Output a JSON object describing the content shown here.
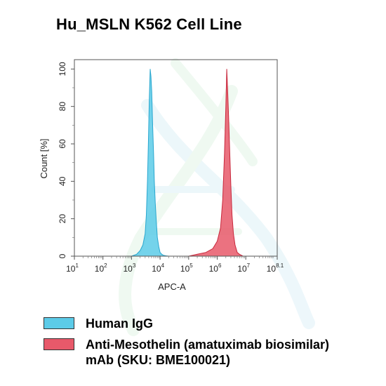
{
  "title": "Hu_MSLN K562 Cell Line",
  "chart_data": {
    "type": "area",
    "title": "Hu_MSLN K562 Cell Line",
    "xlabel": "APC-A",
    "ylabel": "Count [%]",
    "x_scale": "log",
    "xlim": [
      10,
      125892541
    ],
    "ylim": [
      0,
      105
    ],
    "x_ticks": [
      {
        "base": "10",
        "exp": "1"
      },
      {
        "base": "10",
        "exp": "2"
      },
      {
        "base": "10",
        "exp": "3"
      },
      {
        "base": "10",
        "exp": "4"
      },
      {
        "base": "10",
        "exp": "5"
      },
      {
        "base": "10",
        "exp": "6"
      },
      {
        "base": "10",
        "exp": "7"
      },
      {
        "base": "10",
        "exp": "8.1"
      }
    ],
    "y_ticks": [
      "0",
      "20",
      "40",
      "60",
      "80",
      "100"
    ],
    "grid": false,
    "legend_position": "below",
    "series": [
      {
        "name": "Human IgG",
        "color": "#5ccbe8",
        "x": [
          1000,
          1500,
          2000,
          2500,
          3000,
          3300,
          3600,
          3900,
          4200,
          4500,
          4800,
          5100,
          5500,
          5900,
          6300,
          6800,
          7400,
          8000,
          9000,
          10000,
          11500,
          13000,
          16000,
          20000
        ],
        "values": [
          0,
          1,
          3,
          6,
          12,
          22,
          40,
          62,
          85,
          100,
          96,
          88,
          70,
          55,
          40,
          28,
          18,
          10,
          5,
          2,
          1,
          0.5,
          0.2,
          0
        ]
      },
      {
        "name": "Anti-Mesothelin (amatuximab biosimilar) mAb (SKU: BME100021)",
        "color": "#e8596a",
        "x": [
          100000,
          200000,
          400000,
          700000,
          1000000,
          1300000,
          1550000,
          1800000,
          2000000,
          2150000,
          2300000,
          2500000,
          2750000,
          3000000,
          3300000,
          3700000,
          4200000,
          5000000,
          6000000,
          8000000
        ],
        "values": [
          0,
          1,
          2,
          4,
          8,
          15,
          30,
          55,
          80,
          100,
          90,
          75,
          55,
          38,
          22,
          12,
          6,
          2,
          1,
          0
        ]
      }
    ]
  },
  "legend": [
    {
      "label": "Human IgG",
      "color": "#5ccbe8"
    },
    {
      "label": "Anti-Mesothelin (amatuximab biosimilar) mAb (SKU: BME100021)",
      "color": "#e8596a"
    }
  ]
}
